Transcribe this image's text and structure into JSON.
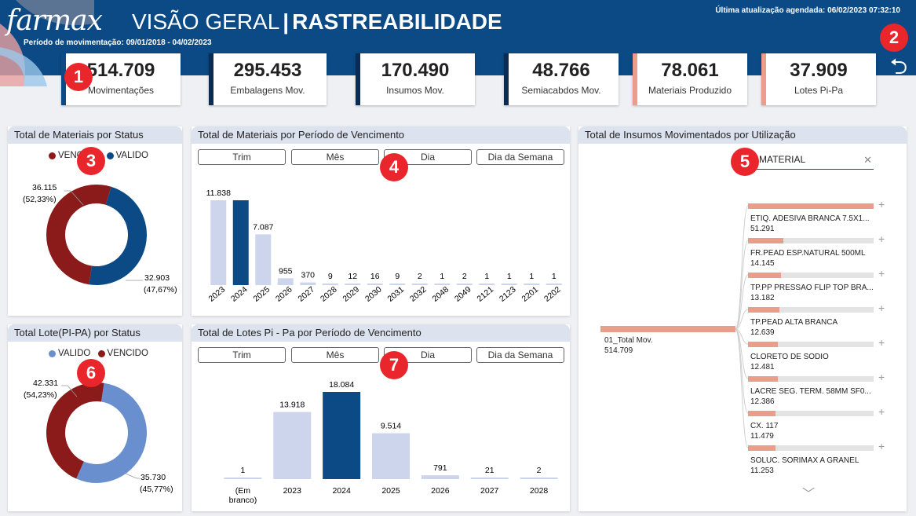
{
  "header": {
    "logo": "farmax",
    "title_thin": "VISÃO GERAL",
    "title_bold": "RASTREABILIDADE",
    "period": "Período de movimentação: 09/01/2018 - 04/02/2023",
    "updated": "Última atualização agendada: 06/02/2023 07:32:10",
    "back_icon": "back-arrow-icon"
  },
  "kpis": [
    {
      "value": "514.709",
      "label": "Movimentações",
      "accent": "#0b4a85"
    },
    {
      "value": "295.453",
      "label": "Embalagens Mov.",
      "accent": "#0b2c52"
    },
    {
      "value": "170.490",
      "label": "Insumos Mov.",
      "accent": "#0b2c52"
    },
    {
      "value": "48.766",
      "label": "Semiacabdos Mov.",
      "accent": "#0b2c52"
    },
    {
      "value": "78.061",
      "label": "Materiais Produzido",
      "accent": "#eb9c8a"
    },
    {
      "value": "37.909",
      "label": "Lotes Pi-Pa",
      "accent": "#eb9c8a"
    }
  ],
  "markers": [
    "1",
    "2",
    "3",
    "4",
    "5",
    "6",
    "7"
  ],
  "panels": {
    "mat_status": {
      "title": "Total de Materiais por Status",
      "legend": [
        {
          "name": "VENCIDO",
          "color": "#8b1a1a"
        },
        {
          "name": "VALIDO",
          "color": "#0b4a85"
        }
      ],
      "label_a": "36.115",
      "label_a_pct": "(52,33%)",
      "label_b": "32.903",
      "label_b_pct": "(47,67%)"
    },
    "mat_venc": {
      "title": "Total de Materiais por Período de Vencimento",
      "slicers": [
        "Trim",
        "Mês",
        "Dia",
        "Dia da Semana"
      ]
    },
    "insumos": {
      "title": "Total de Insumos Movimentados por Utilização",
      "search_value": "C MATERIAL",
      "root_label": "01_Total Mov.",
      "root_value": "514.709",
      "items": [
        {
          "name": "ETIQ. ADESIVA BRANCA 7.5X1...",
          "value": "51.291",
          "share": 1.0
        },
        {
          "name": "FR.PEAD ESP.NATURAL 500ML",
          "value": "14.145",
          "share": 0.28
        },
        {
          "name": "TP.PP PRESSAO FLIP TOP BRA...",
          "value": "13.182",
          "share": 0.26
        },
        {
          "name": "TP.PEAD ALTA BRANCA",
          "value": "12.639",
          "share": 0.25
        },
        {
          "name": "CLORETO DE SODIO",
          "value": "12.481",
          "share": 0.24
        },
        {
          "name": "LACRE SEG. TERM. 58MM SF0...",
          "value": "12.386",
          "share": 0.24
        },
        {
          "name": "CX. 117",
          "value": "11.479",
          "share": 0.22
        },
        {
          "name": "SOLUC. SORIMAX A GRANEL",
          "value": "11.253",
          "share": 0.22
        }
      ]
    },
    "lote_status": {
      "title": "Total Lote(PI-PA) por Status",
      "legend": [
        {
          "name": "VALIDO",
          "color": "#6a8fcf"
        },
        {
          "name": "VENCIDO",
          "color": "#8b1a1a"
        }
      ],
      "label_a": "42.331",
      "label_a_pct": "(54,23%)",
      "label_b": "35.730",
      "label_b_pct": "(45,77%)"
    },
    "lote_venc": {
      "title": "Total de Lotes Pi - Pa por Período de Vencimento",
      "slicers": [
        "Trim",
        "Mês",
        "Dia",
        "Dia da Semana"
      ]
    }
  },
  "chart_data": [
    {
      "type": "pie",
      "title": "Total de Materiais por Status",
      "categories": [
        "VENCIDO",
        "VALIDO"
      ],
      "values": [
        36115,
        32903
      ],
      "colors": [
        "#8b1a1a",
        "#0b4a85"
      ]
    },
    {
      "type": "bar",
      "title": "Total de Materiais por Período de Vencimento",
      "categories": [
        "2023",
        "2024",
        "2025",
        "2026",
        "2027",
        "2028",
        "2029",
        "2030",
        "2031",
        "2032",
        "2048",
        "2049",
        "2121",
        "2123",
        "2201",
        "2202"
      ],
      "values": [
        11838,
        11838,
        7087,
        955,
        370,
        9,
        12,
        16,
        9,
        2,
        1,
        2,
        1,
        1,
        1,
        1
      ],
      "labels": [
        "11.838",
        "",
        "7.087",
        "955",
        "370",
        "9",
        "12",
        "16",
        "9",
        "2",
        "1",
        "2",
        "1",
        "1",
        "1",
        "1"
      ],
      "highlight": 1
    },
    {
      "type": "pie",
      "title": "Total Lote(PI-PA) por Status",
      "categories": [
        "VALIDO",
        "VENCIDO"
      ],
      "values": [
        42331,
        35730
      ],
      "colors": [
        "#6a8fcf",
        "#8b1a1a"
      ]
    },
    {
      "type": "bar",
      "title": "Total de Lotes Pi - Pa por Período de Vencimento",
      "categories": [
        "(Em branco)",
        "2023",
        "2024",
        "2025",
        "2026",
        "2027",
        "2028"
      ],
      "values": [
        1,
        13918,
        18084,
        9514,
        791,
        21,
        2
      ],
      "labels": [
        "1",
        "13.918",
        "18.084",
        "9.514",
        "791",
        "21",
        "2"
      ],
      "highlight": 2
    }
  ]
}
